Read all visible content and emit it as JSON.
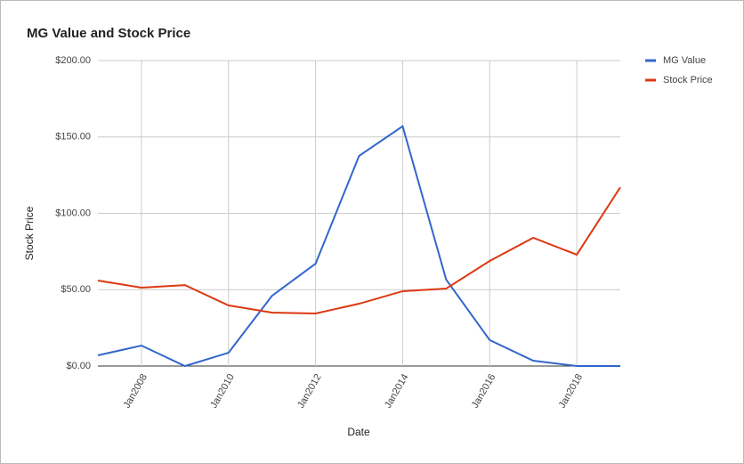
{
  "chart_data": {
    "type": "line",
    "title": "MG Value and Stock Price",
    "x": [
      "2007-01",
      "2008-01",
      "2009-01",
      "2010-01",
      "2011-01",
      "2012-01",
      "2013-01",
      "2014-01",
      "2015-01",
      "2016-01",
      "2017-01",
      "2018-01",
      "2019-01"
    ],
    "series": [
      {
        "name": "MG Value",
        "color": "#3366cc",
        "values": [
          7,
          13.4,
          0,
          8.7,
          46,
          67,
          137.6,
          157,
          56.6,
          17,
          3.5,
          0,
          0
        ]
      },
      {
        "name": "Stock Price",
        "color": "#dc3912",
        "values": [
          56,
          51.3,
          53,
          39.7,
          35,
          34.4,
          40.8,
          49,
          50.7,
          68.8,
          84,
          72.9,
          117
        ]
      }
    ],
    "xlim": [
      "2007-01",
      "2019-01"
    ],
    "xticks": [
      {
        "value": "2008-01",
        "label": "Jan2008"
      },
      {
        "value": "2010-01",
        "label": "Jan2010"
      },
      {
        "value": "2012-01",
        "label": "Jan2012"
      },
      {
        "value": "2014-01",
        "label": "Jan2014"
      },
      {
        "value": "2016-01",
        "label": "Jan2016"
      },
      {
        "value": "2018-01",
        "label": "Jan2018"
      }
    ],
    "ylim": [
      0,
      200
    ],
    "yticks": [
      {
        "value": 0,
        "label": "$0.00"
      },
      {
        "value": 50,
        "label": "$50.00"
      },
      {
        "value": 100,
        "label": "$100.00"
      },
      {
        "value": 150,
        "label": "$150.00"
      },
      {
        "value": 200,
        "label": "$200.00"
      }
    ],
    "xlabel": "Date",
    "ylabel": "Stock Price",
    "grid": true,
    "legend": "right"
  }
}
